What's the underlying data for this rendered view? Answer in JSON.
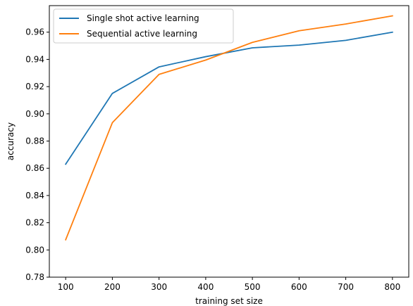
{
  "chart_data": {
    "type": "line",
    "xlabel": "training set size",
    "ylabel": "accuracy",
    "x": [
      100,
      200,
      300,
      400,
      500,
      600,
      700,
      800
    ],
    "xticks": [
      "100",
      "200",
      "300",
      "400",
      "500",
      "600",
      "700",
      "800"
    ],
    "yticks": [
      "0.78",
      "0.80",
      "0.82",
      "0.84",
      "0.86",
      "0.88",
      "0.90",
      "0.92",
      "0.94",
      "0.96"
    ],
    "xlim": [
      65,
      835
    ],
    "ylim": [
      0.78,
      0.9795
    ],
    "grid": false,
    "legend_position": "top-left",
    "series": [
      {
        "name": "Single shot active learning",
        "color": "#1f77b4",
        "values": [
          0.863,
          0.915,
          0.9345,
          0.942,
          0.9485,
          0.9505,
          0.954,
          0.96
        ]
      },
      {
        "name": "Sequential active learning",
        "color": "#ff7f0e",
        "values": [
          0.8075,
          0.8935,
          0.929,
          0.9395,
          0.9525,
          0.961,
          0.966,
          0.972
        ]
      }
    ]
  }
}
